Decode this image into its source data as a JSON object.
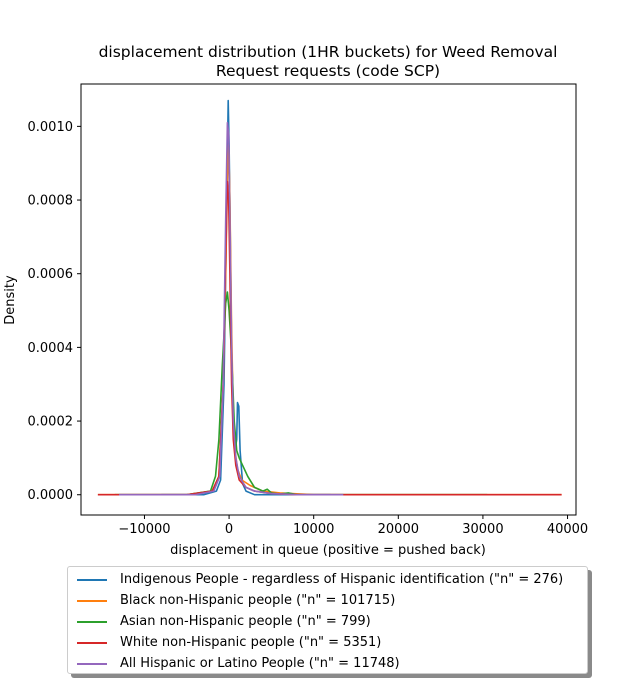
{
  "chart_data": {
    "type": "line",
    "title_line1": "displacement distribution (1HR buckets) for Weed Removal",
    "title_line2": "Request requests (code SCP)",
    "xlabel": "displacement in queue (positive = pushed back)",
    "ylabel": "Density",
    "xlim": [
      -17500,
      41000
    ],
    "ylim": [
      -5.5e-05,
      0.001115
    ],
    "x_ticks": [
      -10000,
      0,
      10000,
      20000,
      30000,
      40000
    ],
    "x_tick_labels": [
      "−10000",
      "0",
      "10000",
      "20000",
      "30000",
      "40000"
    ],
    "y_ticks": [
      0.0,
      0.0002,
      0.0004,
      0.0006,
      0.0008,
      0.001
    ],
    "y_tick_labels": [
      "0.0000",
      "0.0002",
      "0.0004",
      "0.0006",
      "0.0008",
      "0.0010"
    ],
    "legend_position": "below plot",
    "series": [
      {
        "name": "Indigenous People - regardless of Hispanic identification (\"n\" = 276)",
        "color": "#1f77b4",
        "points": [
          [
            -8000,
            0
          ],
          [
            -3000,
            0
          ],
          [
            -1500,
            1e-05
          ],
          [
            -1000,
            4e-05
          ],
          [
            -600,
            0.0003
          ],
          [
            -300,
            0.00075
          ],
          [
            -100,
            0.00107
          ],
          [
            0,
            0.00095
          ],
          [
            150,
            0.0007
          ],
          [
            300,
            0.0004
          ],
          [
            500,
            0.0002
          ],
          [
            700,
            0.00012
          ],
          [
            900,
            0.00015
          ],
          [
            1000,
            0.00025
          ],
          [
            1150,
            0.00024
          ],
          [
            1300,
            0.00012
          ],
          [
            1600,
            3e-05
          ],
          [
            2000,
            1e-05
          ],
          [
            3000,
            0
          ],
          [
            12000,
            0
          ]
        ]
      },
      {
        "name": "Black non-Hispanic people (\"n\" = 101715)",
        "color": "#ff7f0e",
        "points": [
          [
            -15500,
            0
          ],
          [
            -5000,
            0
          ],
          [
            -2000,
            1e-05
          ],
          [
            -1200,
            5e-05
          ],
          [
            -700,
            0.0003
          ],
          [
            -400,
            0.0006
          ],
          [
            -200,
            0.00085
          ],
          [
            -50,
            0.00095
          ],
          [
            100,
            0.0008
          ],
          [
            300,
            0.00045
          ],
          [
            500,
            0.00022
          ],
          [
            700,
            0.00012
          ],
          [
            1000,
            7e-05
          ],
          [
            1500,
            4e-05
          ],
          [
            2500,
            2.5e-05
          ],
          [
            4000,
            1e-05
          ],
          [
            6000,
            5e-06
          ],
          [
            10000,
            0
          ],
          [
            39300,
            0
          ]
        ]
      },
      {
        "name": "Asian non-Hispanic people (\"n\" = 799)",
        "color": "#2ca02c",
        "points": [
          [
            -13500,
            0
          ],
          [
            -5000,
            0
          ],
          [
            -2200,
            1e-05
          ],
          [
            -1600,
            5e-05
          ],
          [
            -1200,
            0.00015
          ],
          [
            -800,
            0.00035
          ],
          [
            -400,
            0.00052
          ],
          [
            -200,
            0.00055
          ],
          [
            0,
            0.0005
          ],
          [
            200,
            0.00042
          ],
          [
            400,
            0.00032
          ],
          [
            600,
            0.0002
          ],
          [
            900,
            0.00012
          ],
          [
            1200,
            0.0001
          ],
          [
            1600,
            8e-05
          ],
          [
            2200,
            5e-05
          ],
          [
            3000,
            2e-05
          ],
          [
            4000,
            1e-05
          ],
          [
            4500,
            1.5e-05
          ],
          [
            5000,
            5e-06
          ],
          [
            6000,
            2e-06
          ],
          [
            7000,
            5e-06
          ],
          [
            8000,
            0
          ],
          [
            30500,
            0
          ]
        ]
      },
      {
        "name": "White non-Hispanic people (\"n\" = 5351)",
        "color": "#d62728",
        "points": [
          [
            -15500,
            0
          ],
          [
            -5000,
            0
          ],
          [
            -2000,
            1e-05
          ],
          [
            -1200,
            5e-05
          ],
          [
            -700,
            0.0003
          ],
          [
            -400,
            0.00065
          ],
          [
            -200,
            0.00085
          ],
          [
            -50,
            0.0008
          ],
          [
            100,
            0.0006
          ],
          [
            300,
            0.0003
          ],
          [
            500,
            0.00015
          ],
          [
            800,
            8e-05
          ],
          [
            1200,
            4e-05
          ],
          [
            2000,
            2e-05
          ],
          [
            3000,
            1e-05
          ],
          [
            5000,
            3e-06
          ],
          [
            8000,
            0
          ],
          [
            39300,
            0
          ]
        ]
      },
      {
        "name": "All Hispanic or Latino People (\"n\" = 11748)",
        "color": "#9467bd",
        "points": [
          [
            -13000,
            0
          ],
          [
            -4000,
            0
          ],
          [
            -1800,
            1e-05
          ],
          [
            -1100,
            5e-05
          ],
          [
            -700,
            0.0003
          ],
          [
            -400,
            0.00075
          ],
          [
            -200,
            0.00101
          ],
          [
            -50,
            0.00098
          ],
          [
            100,
            0.00075
          ],
          [
            300,
            0.0004
          ],
          [
            500,
            0.0002
          ],
          [
            800,
            0.0001
          ],
          [
            1200,
            5e-05
          ],
          [
            2000,
            2e-05
          ],
          [
            3000,
            1e-05
          ],
          [
            5000,
            3e-06
          ],
          [
            8000,
            0
          ],
          [
            13500,
            0
          ]
        ]
      }
    ]
  }
}
